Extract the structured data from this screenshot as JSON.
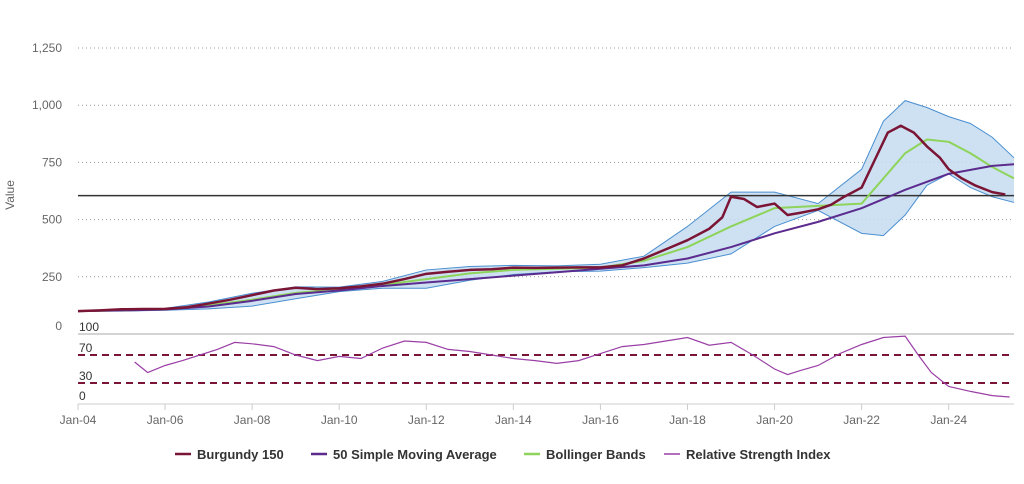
{
  "chart_data": {
    "type": "line",
    "ylabel": "Value",
    "ylim": [
      0,
      1250
    ],
    "y_ticks": [
      "0",
      "250",
      "500",
      "750",
      "1,000",
      "1,250"
    ],
    "x_ticks": [
      "Jan-04",
      "Jan-06",
      "Jan-08",
      "Jan-10",
      "Jan-12",
      "Jan-14",
      "Jan-16",
      "Jan-18",
      "Jan-20",
      "Jan-22",
      "Jan-24"
    ],
    "grid": true,
    "legend_position": "bottom-center",
    "reference_line": 605,
    "series": [
      {
        "name": "Burgundy 150",
        "color": "#7b1535",
        "x": [
          2004.0,
          2004.5,
          2005.0,
          2005.5,
          2006.0,
          2006.5,
          2007.0,
          2007.5,
          2008.0,
          2008.5,
          2009.0,
          2009.5,
          2010.0,
          2010.5,
          2011.0,
          2011.5,
          2012.0,
          2012.5,
          2013.0,
          2013.5,
          2014.0,
          2014.5,
          2015.0,
          2015.5,
          2016.0,
          2016.5,
          2017.0,
          2017.5,
          2018.0,
          2018.5,
          2018.8,
          2019.0,
          2019.3,
          2019.6,
          2020.0,
          2020.3,
          2020.6,
          2021.0,
          2021.3,
          2021.6,
          2022.0,
          2022.3,
          2022.6,
          2022.9,
          2023.2,
          2023.5,
          2023.8,
          2024.0,
          2024.3,
          2024.6,
          2025.0,
          2025.3
        ],
        "values": [
          100,
          103,
          108,
          109,
          110,
          117,
          133,
          150,
          170,
          190,
          202,
          196,
          200,
          208,
          220,
          240,
          263,
          272,
          280,
          283,
          290,
          289,
          290,
          291,
          291,
          300,
          330,
          370,
          410,
          460,
          510,
          600,
          590,
          555,
          570,
          520,
          530,
          545,
          565,
          600,
          640,
          760,
          880,
          910,
          880,
          820,
          770,
          720,
          680,
          650,
          620,
          610
        ]
      },
      {
        "name": "50 Simple Moving Average",
        "color": "#5b2b8e",
        "x": [
          2004.0,
          2005.0,
          2006.0,
          2007.0,
          2008.0,
          2009.0,
          2010.0,
          2011.0,
          2012.0,
          2013.0,
          2014.0,
          2015.0,
          2016.0,
          2017.0,
          2018.0,
          2019.0,
          2020.0,
          2021.0,
          2022.0,
          2023.0,
          2024.0,
          2025.0,
          2025.5
        ],
        "values": [
          100,
          103,
          107,
          120,
          145,
          175,
          190,
          210,
          225,
          240,
          255,
          270,
          285,
          300,
          330,
          380,
          440,
          490,
          550,
          630,
          700,
          735,
          742
        ]
      },
      {
        "name": "Bollinger Bands",
        "color": "#8ed45a",
        "band_fill": "#c6dcf1",
        "band_stroke": "#4a8fd0",
        "x": [
          2004.0,
          2005.0,
          2006.0,
          2007.0,
          2008.0,
          2009.0,
          2010.0,
          2011.0,
          2012.0,
          2013.0,
          2014.0,
          2015.0,
          2016.0,
          2017.0,
          2018.0,
          2019.0,
          2020.0,
          2021.0,
          2022.0,
          2022.5,
          2023.0,
          2023.5,
          2024.0,
          2024.5,
          2025.0,
          2025.5
        ],
        "values": [
          100,
          103,
          108,
          125,
          150,
          180,
          195,
          215,
          240,
          265,
          280,
          285,
          290,
          320,
          380,
          470,
          550,
          560,
          570,
          680,
          790,
          850,
          840,
          790,
          730,
          680
        ],
        "upper": [
          100,
          106,
          112,
          140,
          178,
          206,
          205,
          230,
          280,
          295,
          300,
          298,
          305,
          340,
          470,
          620,
          620,
          570,
          720,
          930,
          1020,
          990,
          950,
          920,
          860,
          770
        ],
        "lower": [
          100,
          100,
          104,
          110,
          122,
          154,
          185,
          200,
          200,
          235,
          260,
          272,
          275,
          290,
          310,
          350,
          470,
          540,
          440,
          430,
          520,
          650,
          700,
          640,
          600,
          575
        ]
      },
      {
        "name": "Relative Strength Index",
        "color": "#9a3fa6",
        "panel_ticks": [
          "100",
          "70",
          "30",
          "0"
        ],
        "overbought": 70,
        "oversold": 30,
        "x": [
          2004.0,
          2004.5,
          2005.0,
          2005.3,
          2005.6,
          2006.0,
          2006.4,
          2006.8,
          2007.2,
          2007.6,
          2008.0,
          2008.5,
          2009.0,
          2009.5,
          2010.0,
          2010.5,
          2011.0,
          2011.5,
          2012.0,
          2012.5,
          2013.0,
          2013.5,
          2014.0,
          2014.5,
          2015.0,
          2015.5,
          2016.0,
          2016.5,
          2017.0,
          2017.5,
          2018.0,
          2018.5,
          2019.0,
          2019.5,
          2020.0,
          2020.3,
          2020.6,
          2021.0,
          2021.5,
          2022.0,
          2022.5,
          2023.0,
          2023.3,
          2023.6,
          2024.0,
          2024.5,
          2025.0,
          2025.4
        ],
        "values": [
          null,
          null,
          null,
          60,
          45,
          55,
          62,
          70,
          78,
          88,
          86,
          82,
          70,
          62,
          68,
          65,
          80,
          90,
          88,
          78,
          75,
          70,
          65,
          62,
          58,
          62,
          72,
          82,
          85,
          90,
          95,
          84,
          88,
          70,
          50,
          42,
          48,
          55,
          72,
          85,
          95,
          97,
          70,
          45,
          25,
          18,
          12,
          10
        ]
      }
    ]
  }
}
